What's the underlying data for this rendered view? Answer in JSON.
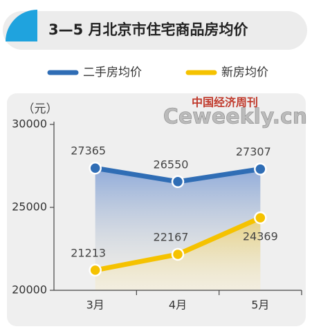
{
  "chart_data": {
    "type": "line",
    "title": "3—5 月北京市住宅商品房均价",
    "y_unit": "（元）",
    "watermark": [
      "中国经济周刊",
      "Ceweekly.cn"
    ],
    "categories": [
      "3月",
      "4月",
      "5月"
    ],
    "series": [
      {
        "name": "二手房均价",
        "color": "#2f6db5",
        "values": [
          27365,
          26550,
          27307
        ]
      },
      {
        "name": "新房均价",
        "color": "#f5c200",
        "values": [
          21213,
          22167,
          24369
        ]
      }
    ],
    "ylim": [
      20000,
      30000
    ],
    "yticks": [
      20000,
      25000,
      30000
    ]
  }
}
